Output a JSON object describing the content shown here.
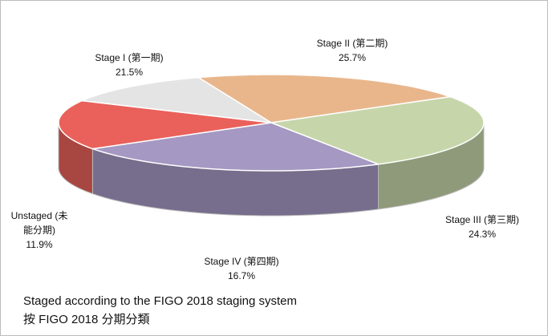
{
  "chart_data": {
    "type": "pie3d",
    "categories": [
      "Stage I (第一期)",
      "Stage II (第二期)",
      "Stage III (第三期)",
      "Stage IV (第四期)",
      "Unstaged (未能分期)"
    ],
    "values": [
      21.5,
      25.7,
      24.3,
      16.7,
      11.9
    ],
    "value_labels": [
      "21.5%",
      "25.7%",
      "24.3%",
      "16.7%",
      "11.9%"
    ],
    "colors": [
      "#e9b68c",
      "#c6d6aa",
      "#a598c2",
      "#e9615a",
      "#e4e4e4"
    ],
    "notes": [
      "Staged according to the FIGO 2018 staging system",
      "按 FIGO 2018 分期分類"
    ]
  }
}
